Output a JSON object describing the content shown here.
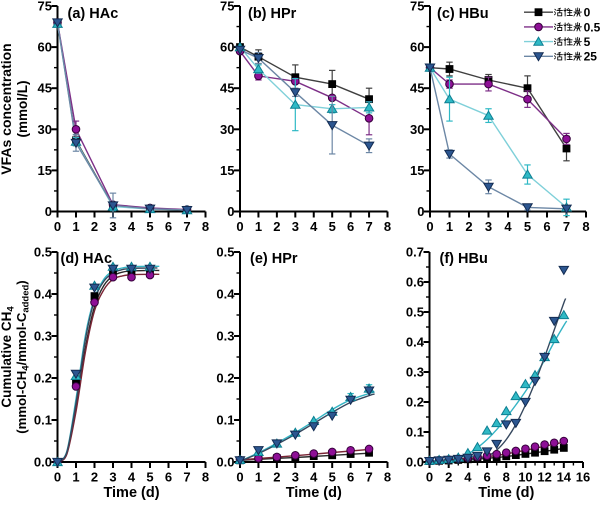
{
  "figure": {
    "background": "#ffffff",
    "row1_ylabel_line1": "VFAs concentration",
    "row1_ylabel_line2": "(mmol/L)",
    "row2_ylabel_line1": "Cumulative CH_{4}",
    "row2_ylabel_line2": "(mmol-CH_{4}/mmol-C_{added})",
    "xlabel": "Time (d)"
  },
  "legend": {
    "position": "top-right",
    "items": [
      {
        "label": "活性炭0",
        "prefix": "活性炭",
        "suffix": "0",
        "series": "s1"
      },
      {
        "label": "活性炭0.5",
        "prefix": "活性炭",
        "suffix": "0.5",
        "series": "s2"
      },
      {
        "label": "活性炭5",
        "prefix": "活性炭",
        "suffix": "5",
        "series": "s3"
      },
      {
        "label": "活性炭25",
        "prefix": "活性炭",
        "suffix": "25",
        "series": "s4"
      }
    ]
  },
  "series_style": {
    "s1": {
      "name": "活性炭0",
      "marker": "square",
      "fill": "#000000",
      "edge": "#000000",
      "line": "#3f3f3f",
      "fit": "#2a2a2a"
    },
    "s2": {
      "name": "活性炭0.5",
      "marker": "circle",
      "fill": "#8e0f96",
      "edge": "#35003a",
      "line": "#7d2f87",
      "fit": "#7a2535"
    },
    "s3": {
      "name": "活性炭5",
      "marker": "triup",
      "fill": "#2fb9c5",
      "edge": "#0d7f92",
      "line": "#7fd0d9",
      "fit": "#35b4c4"
    },
    "s4": {
      "name": "活性炭25",
      "marker": "tridown",
      "fill": "#2c5690",
      "edge": "#132c52",
      "line": "#6c87a5",
      "fit": "#36485e"
    }
  },
  "chart_data": [
    {
      "id": "a",
      "type": "line",
      "title": "(a)  HAc",
      "xlim": [
        0,
        8
      ],
      "ylim": [
        0,
        75
      ],
      "xticklabels": [
        "0",
        "1",
        "2",
        "3",
        "4",
        "5",
        "6",
        "7",
        "8"
      ],
      "yticklabels": [
        "0",
        "15",
        "30",
        "45",
        "60",
        "75"
      ],
      "x": [
        0,
        1,
        3,
        5,
        7
      ],
      "series": [
        {
          "key": "s1",
          "values": [
            69,
            26,
            2.0,
            1.0,
            0.6
          ],
          "err": [
            0,
            2,
            0,
            0,
            0
          ]
        },
        {
          "key": "s2",
          "values": [
            69,
            30,
            2.5,
            1.3,
            0.7
          ],
          "err": [
            0,
            3,
            0,
            0,
            0
          ]
        },
        {
          "key": "s3",
          "values": [
            68.5,
            25.5,
            1.8,
            0.9,
            0.5
          ],
          "err": [
            0,
            1.5,
            1.5,
            0.6,
            0
          ]
        },
        {
          "key": "s4",
          "values": [
            69,
            25,
            2.2,
            1.0,
            0.5
          ],
          "err": [
            0,
            3,
            4.5,
            0.5,
            0
          ]
        }
      ]
    },
    {
      "id": "b",
      "type": "line",
      "title": "(b) HPr",
      "xlim": [
        0,
        8
      ],
      "ylim": [
        0,
        75
      ],
      "xticklabels": [
        "0",
        "1",
        "2",
        "3",
        "4",
        "5",
        "6",
        "7",
        "8"
      ],
      "yticklabels": [
        "0",
        "15",
        "30",
        "45",
        "60",
        "75"
      ],
      "x": [
        0,
        1,
        3,
        5,
        7
      ],
      "series": [
        {
          "key": "s1",
          "values": [
            60,
            56.5,
            49,
            46.5,
            41
          ],
          "err": [
            1,
            2.5,
            4.5,
            5,
            4
          ]
        },
        {
          "key": "s2",
          "values": [
            58.5,
            49.5,
            47.5,
            41.5,
            34
          ],
          "err": [
            0,
            1.5,
            0,
            0,
            6
          ]
        },
        {
          "key": "s3",
          "values": [
            60,
            52,
            39,
            37.5,
            38
          ],
          "err": [
            0,
            1.5,
            9.5,
            1.5,
            2
          ]
        },
        {
          "key": "s4",
          "values": [
            59,
            56,
            43.5,
            31.5,
            24
          ],
          "err": [
            0,
            2,
            1.5,
            10.5,
            2.5
          ]
        }
      ]
    },
    {
      "id": "c",
      "type": "line",
      "title": "(c) HBu",
      "xlim": [
        0,
        8
      ],
      "ylim": [
        0,
        75
      ],
      "xticklabels": [
        "0",
        "1",
        "2",
        "3",
        "4",
        "5",
        "6",
        "7",
        "8"
      ],
      "yticklabels": [
        "0",
        "15",
        "30",
        "45",
        "60",
        "75"
      ],
      "x": [
        0,
        1,
        3,
        5,
        7
      ],
      "series": [
        {
          "key": "s1",
          "values": [
            52.5,
            52,
            48,
            45,
            23
          ],
          "err": [
            0,
            2.5,
            2,
            4.5,
            4.5
          ]
        },
        {
          "key": "s2",
          "values": [
            52.5,
            46.5,
            46.5,
            41,
            26.5
          ],
          "err": [
            0,
            1.5,
            2.5,
            3,
            2
          ]
        },
        {
          "key": "s3",
          "values": [
            52.5,
            41,
            35,
            13.5,
            1.5
          ],
          "err": [
            0,
            8,
            2.5,
            3.5,
            3
          ]
        },
        {
          "key": "s4",
          "values": [
            52.5,
            21,
            9,
            1.5,
            1
          ],
          "err": [
            0,
            1.5,
            2.5,
            1,
            0
          ]
        }
      ]
    },
    {
      "id": "d",
      "type": "scatter-fit",
      "title": "(d) HAc",
      "xlim": [
        0,
        8
      ],
      "ylim": [
        0,
        0.5
      ],
      "xticklabels": [
        "0",
        "1",
        "2",
        "3",
        "4",
        "5",
        "6",
        "7",
        "8"
      ],
      "yticklabels": [
        "0.0",
        "0.1",
        "0.2",
        "0.3",
        "0.4",
        "0.5"
      ],
      "x": [
        0,
        1,
        2,
        3,
        4,
        5
      ],
      "series": [
        {
          "key": "s1",
          "values": [
            0,
            0.19,
            0.395,
            0.455,
            0.455,
            0.455
          ],
          "fit": [
            [
              0,
              0
            ],
            [
              0.5,
              0.02
            ],
            [
              1,
              0.13
            ],
            [
              1.5,
              0.27
            ],
            [
              2,
              0.37
            ],
            [
              2.5,
              0.42
            ],
            [
              3,
              0.443
            ],
            [
              3.5,
              0.452
            ],
            [
              4,
              0.455
            ],
            [
              5,
              0.456
            ],
            [
              5.5,
              0.456
            ]
          ]
        },
        {
          "key": "s2",
          "values": [
            0,
            0.18,
            0.38,
            0.44,
            0.44,
            0.445
          ],
          "fit": [
            [
              0,
              0
            ],
            [
              0.5,
              0.018
            ],
            [
              1,
              0.12
            ],
            [
              1.5,
              0.26
            ],
            [
              2,
              0.36
            ],
            [
              2.5,
              0.41
            ],
            [
              3,
              0.435
            ],
            [
              3.5,
              0.443
            ],
            [
              4,
              0.446
            ],
            [
              5,
              0.447
            ],
            [
              5.5,
              0.447
            ]
          ]
        },
        {
          "key": "s3",
          "values": [
            0,
            0.205,
            0.42,
            0.465,
            0.465,
            0.465
          ],
          "fit": [
            [
              0,
              0
            ],
            [
              0.5,
              0.025
            ],
            [
              1,
              0.15
            ],
            [
              1.5,
              0.3
            ],
            [
              2,
              0.39
            ],
            [
              2.5,
              0.435
            ],
            [
              3,
              0.455
            ],
            [
              3.5,
              0.462
            ],
            [
              4,
              0.465
            ],
            [
              5,
              0.466
            ],
            [
              5.5,
              0.466
            ]
          ]
        },
        {
          "key": "s4",
          "values": [
            0,
            0.21,
            0.415,
            0.46,
            0.46,
            0.46
          ],
          "fit": [
            [
              0,
              0
            ],
            [
              0.5,
              0.023
            ],
            [
              1,
              0.14
            ],
            [
              1.5,
              0.29
            ],
            [
              2,
              0.385
            ],
            [
              2.5,
              0.43
            ],
            [
              3,
              0.45
            ],
            [
              3.5,
              0.458
            ],
            [
              4,
              0.461
            ],
            [
              5,
              0.462
            ],
            [
              5.4,
              0.462
            ]
          ]
        }
      ]
    },
    {
      "id": "e",
      "type": "scatter-fit",
      "title": "(e) HPr",
      "xlim": [
        0,
        8
      ],
      "ylim": [
        0,
        0.5
      ],
      "xticklabels": [
        "0",
        "1",
        "2",
        "3",
        "4",
        "5",
        "6",
        "7",
        "8"
      ],
      "yticklabels": [
        "0.0",
        "0.1",
        "0.2",
        "0.3",
        "0.4",
        "0.5"
      ],
      "x": [
        0,
        1,
        2,
        3,
        4,
        5,
        6,
        7
      ],
      "series": [
        {
          "key": "s1",
          "values": [
            0.004,
            0.007,
            0.009,
            0.011,
            0.014,
            0.016,
            0.019,
            0.022
          ],
          "fit": [
            [
              0,
              0.004
            ],
            [
              3.5,
              0.012
            ],
            [
              7,
              0.021
            ]
          ]
        },
        {
          "key": "s2",
          "values": [
            0.005,
            0.009,
            0.012,
            0.016,
            0.02,
            0.024,
            0.028,
            0.031
          ],
          "fit": [
            [
              0,
              0.005
            ],
            [
              3.5,
              0.017
            ],
            [
              7,
              0.03
            ]
          ]
        },
        {
          "key": "s3",
          "values": [
            0.005,
            0.024,
            0.044,
            0.07,
            0.098,
            0.12,
            0.155,
            0.175
          ],
          "err": [
            0,
            0,
            0,
            0,
            0,
            0,
            0.008,
            0.009
          ],
          "fit": [
            [
              0,
              0.002
            ],
            [
              1,
              0.022
            ],
            [
              2,
              0.045
            ],
            [
              3,
              0.07
            ],
            [
              4,
              0.097
            ],
            [
              5,
              0.125
            ],
            [
              6,
              0.148
            ],
            [
              7,
              0.163
            ],
            [
              7.3,
              0.167
            ]
          ]
        },
        {
          "key": "s4",
          "values": [
            0.004,
            0.028,
            0.044,
            0.065,
            0.085,
            0.11,
            0.148,
            0.17
          ],
          "fit": [
            [
              0,
              0.002
            ],
            [
              1,
              0.02
            ],
            [
              2,
              0.042
            ],
            [
              3,
              0.066
            ],
            [
              4,
              0.092
            ],
            [
              5,
              0.118
            ],
            [
              6,
              0.142
            ],
            [
              7,
              0.158
            ],
            [
              7.3,
              0.162
            ]
          ]
        }
      ]
    },
    {
      "id": "f",
      "type": "scatter-fit",
      "title": "(f) HBu",
      "xlim": [
        0,
        16
      ],
      "ylim": [
        0,
        0.7
      ],
      "xticklabels": [
        "0",
        "2",
        "4",
        "6",
        "8",
        "10",
        "12",
        "14",
        "16"
      ],
      "yticklabels": [
        "0.0",
        "0.1",
        "0.2",
        "0.3",
        "0.4",
        "0.5",
        "0.6",
        "0.7"
      ],
      "x": [
        0,
        1,
        2,
        3,
        4,
        5,
        6,
        7,
        8,
        9,
        10,
        11,
        12,
        13,
        14
      ],
      "series": [
        {
          "key": "s1",
          "values": [
            0.003,
            0.004,
            0.005,
            0.007,
            0.009,
            0.011,
            0.013,
            0.016,
            0.019,
            0.023,
            0.027,
            0.031,
            0.036,
            0.041,
            0.047
          ],
          "fit": [
            [
              0,
              0.002
            ],
            [
              7,
              0.015
            ],
            [
              14,
              0.045
            ]
          ]
        },
        {
          "key": "s2",
          "values": [
            0.004,
            0.006,
            0.008,
            0.011,
            0.014,
            0.017,
            0.021,
            0.026,
            0.031,
            0.037,
            0.044,
            0.051,
            0.058,
            0.064,
            0.07
          ],
          "fit": [
            [
              0,
              0.003
            ],
            [
              7,
              0.022
            ],
            [
              14,
              0.066
            ]
          ]
        },
        {
          "key": "s3",
          "values": [
            0.004,
            0.007,
            0.01,
            0.015,
            0.03,
            0.05,
            0.105,
            0.13,
            0.17,
            0.22,
            0.26,
            0.29,
            0.35,
            0.41,
            0.49
          ],
          "fit": [
            [
              0,
              0.003
            ],
            [
              2,
              0.01
            ],
            [
              4,
              0.028
            ],
            [
              5,
              0.048
            ],
            [
              6,
              0.075
            ],
            [
              7,
              0.108
            ],
            [
              8,
              0.148
            ],
            [
              9,
              0.19
            ],
            [
              10,
              0.235
            ],
            [
              11,
              0.285
            ],
            [
              12,
              0.34
            ],
            [
              13,
              0.4
            ],
            [
              14,
              0.455
            ],
            [
              14.3,
              0.47
            ]
          ]
        },
        {
          "key": "s4",
          "values": [
            0.003,
            0.005,
            0.007,
            0.01,
            0.014,
            0.02,
            0.035,
            0.06,
            0.125,
            0.13,
            0.2,
            0.27,
            0.35,
            0.47,
            0.64
          ],
          "fit": [
            [
              0,
              0
            ],
            [
              4,
              0.005
            ],
            [
              6,
              0.02
            ],
            [
              7,
              0.04
            ],
            [
              8,
              0.075
            ],
            [
              9,
              0.125
            ],
            [
              10,
              0.19
            ],
            [
              11,
              0.265
            ],
            [
              12,
              0.35
            ],
            [
              13,
              0.44
            ],
            [
              14,
              0.53
            ],
            [
              14.2,
              0.545
            ]
          ]
        }
      ]
    }
  ]
}
